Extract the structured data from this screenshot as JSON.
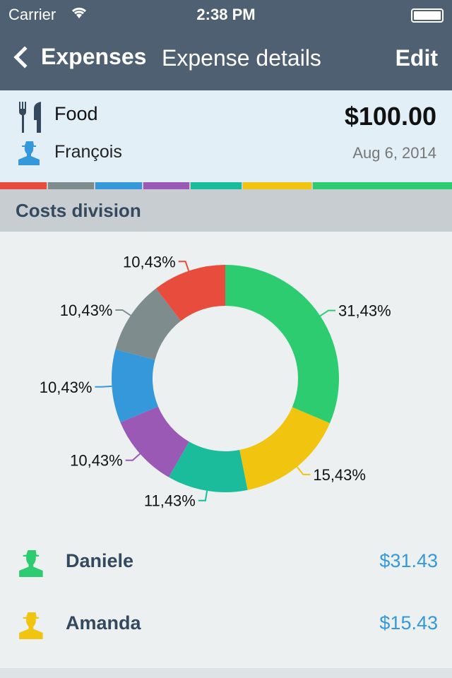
{
  "status": {
    "carrier": "Carrier",
    "time": "2:38 PM"
  },
  "nav": {
    "back": "Expenses",
    "title": "Expense details",
    "edit": "Edit"
  },
  "expense": {
    "category": "Food",
    "amount": "$100.00",
    "person": "François",
    "date": "Aug 6, 2014"
  },
  "section": "Costs division",
  "colors": {
    "green": "#2ecc71",
    "yellow": "#f1c40f",
    "teal": "#1abc9c",
    "purple": "#9b59b6",
    "blue": "#3498db",
    "gray": "#7f8c8d",
    "red": "#e74c3c"
  },
  "chart_data": {
    "type": "pie",
    "donut": true,
    "slices": [
      {
        "label": "31,43%",
        "value": 31.43,
        "color": "#2ecc71"
      },
      {
        "label": "15,43%",
        "value": 15.43,
        "color": "#f1c40f"
      },
      {
        "label": "11,43%",
        "value": 11.43,
        "color": "#1abc9c"
      },
      {
        "label": "10,43%",
        "value": 10.43,
        "color": "#9b59b6"
      },
      {
        "label": "10,43%",
        "value": 10.43,
        "color": "#3498db"
      },
      {
        "label": "10,43%",
        "value": 10.43,
        "color": "#7f8c8d"
      },
      {
        "label": "10,43%",
        "value": 10.43,
        "color": "#e74c3c"
      }
    ]
  },
  "people": [
    {
      "name": "Daniele",
      "amount": "$31.43",
      "color": "#2ecc71"
    },
    {
      "name": "Amanda",
      "amount": "$15.43",
      "color": "#f1c40f"
    }
  ]
}
